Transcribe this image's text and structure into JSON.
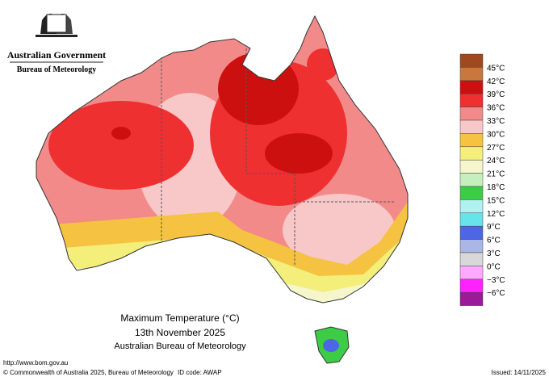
{
  "header": {
    "government": "Australian Government",
    "bureau": "Bureau of Meteorology"
  },
  "legend": {
    "labels": [
      "45°C",
      "42°C",
      "39°C",
      "36°C",
      "33°C",
      "30°C",
      "27°C",
      "24°C",
      "21°C",
      "18°C",
      "15°C",
      "12°C",
      "9°C",
      "6°C",
      "3°C",
      "0°C",
      "−3°C",
      "−6°C"
    ],
    "colors": [
      "#a0481e",
      "#c8783c",
      "#cc1010",
      "#ee3030",
      "#f28a8a",
      "#f8c8c8",
      "#f5c242",
      "#f3ef7a",
      "#f6f6cc",
      "#c6efc0",
      "#3ccc46",
      "#b0f2f0",
      "#66e4ea",
      "#4d66e6",
      "#aab6e6",
      "#d8d8d8",
      "#ffaaff",
      "#ff22ff",
      "#9a1a9a"
    ]
  },
  "title": {
    "line1": "Maximum Temperature (°C)",
    "line2": "13th November 2025",
    "line3": "Australian Bureau of Meteorology"
  },
  "footer": {
    "url": "http://www.bom.gov.au",
    "copyright": "© Commonwealth of Australia 2025, Bureau of Meteorology",
    "id": "ID code: AWAP",
    "issued": "Issued: 14/11/2025"
  }
}
